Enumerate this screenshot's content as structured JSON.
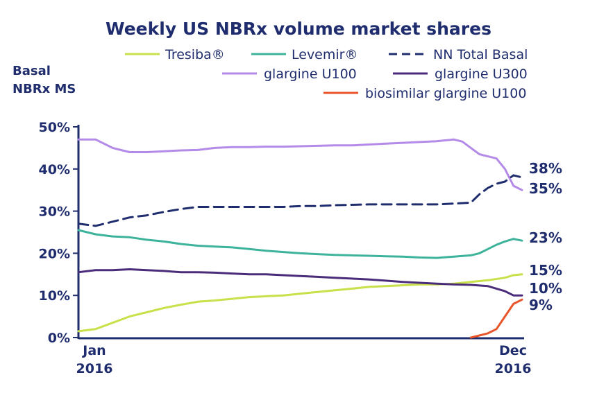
{
  "chart_data": {
    "type": "line",
    "title": "Weekly US NBRx volume market shares",
    "ylabel_line1": "Basal",
    "ylabel_line2": "NBRx MS",
    "ylim": [
      0,
      50
    ],
    "yticks": [
      "0%",
      "10%",
      "20%",
      "30%",
      "40%",
      "50%"
    ],
    "xtick_start": [
      "Jan",
      "2016"
    ],
    "xtick_end": [
      "Dec",
      "2016"
    ],
    "grid": false,
    "legend_position": "top-right",
    "series": [
      {
        "name": "Tresiba",
        "legend_label": "Tresiba®",
        "color": "#c9e04a",
        "dash": "solid",
        "end_label": "15%",
        "x": [
          0,
          2,
          4,
          6,
          8,
          10,
          12,
          14,
          16,
          18,
          20,
          22,
          24,
          26,
          28,
          30,
          32,
          34,
          36,
          38,
          40,
          42,
          44,
          46,
          48,
          50,
          51,
          52
        ],
        "values": [
          1.5,
          2,
          3.5,
          5,
          6,
          7,
          7.8,
          8.5,
          8.8,
          9.2,
          9.6,
          9.8,
          10,
          10.4,
          10.8,
          11.2,
          11.6,
          12,
          12.2,
          12.4,
          12.6,
          12.6,
          12.8,
          13.2,
          13.6,
          14.2,
          14.8,
          15
        ]
      },
      {
        "name": "Levemir",
        "legend_label": "Levemir®",
        "color": "#3cb39a",
        "dash": "solid",
        "end_label": "23%",
        "x": [
          0,
          2,
          4,
          6,
          8,
          10,
          12,
          14,
          16,
          18,
          20,
          22,
          24,
          26,
          28,
          30,
          32,
          34,
          36,
          38,
          40,
          42,
          44,
          46,
          47,
          48,
          49,
          50,
          51,
          52
        ],
        "values": [
          25.5,
          24.5,
          24,
          23.8,
          23.2,
          22.8,
          22.2,
          21.8,
          21.6,
          21.4,
          21,
          20.6,
          20.3,
          20,
          19.8,
          19.6,
          19.5,
          19.4,
          19.3,
          19.2,
          19,
          18.9,
          19.2,
          19.5,
          20,
          21,
          22,
          22.8,
          23.4,
          23
        ]
      },
      {
        "name": "NN Total Basal",
        "legend_label": "NN Total Basal",
        "color": "#1f2d6e",
        "dash": "dashed",
        "end_label": "38%",
        "x": [
          0,
          2,
          4,
          6,
          8,
          10,
          12,
          14,
          16,
          18,
          20,
          22,
          24,
          26,
          28,
          30,
          32,
          34,
          36,
          38,
          40,
          42,
          44,
          46,
          47,
          48,
          49,
          50,
          51,
          52
        ],
        "values": [
          27,
          26.5,
          27.5,
          28.5,
          29,
          29.8,
          30.5,
          31,
          31,
          31,
          31,
          31,
          31,
          31.2,
          31.2,
          31.4,
          31.5,
          31.6,
          31.6,
          31.6,
          31.6,
          31.6,
          31.8,
          32,
          34,
          35.5,
          36.5,
          37,
          38.5,
          38
        ]
      },
      {
        "name": "glargine U100",
        "legend_label": "glargine U100",
        "color": "#b48ae8",
        "dash": "solid",
        "end_label": "35%",
        "x": [
          0,
          2,
          4,
          6,
          8,
          10,
          12,
          14,
          16,
          18,
          20,
          22,
          24,
          26,
          28,
          30,
          32,
          34,
          36,
          38,
          40,
          42,
          44,
          45,
          46,
          47,
          48,
          49,
          50,
          51,
          52
        ],
        "values": [
          47,
          47,
          45,
          44,
          44,
          44.2,
          44.4,
          44.5,
          45,
          45.2,
          45.2,
          45.3,
          45.3,
          45.4,
          45.5,
          45.6,
          45.6,
          45.8,
          46,
          46.2,
          46.4,
          46.6,
          47,
          46.5,
          45,
          43.5,
          43,
          42.5,
          40,
          36,
          35
        ]
      },
      {
        "name": "glargine U300",
        "legend_label": "glargine U300",
        "color": "#4a2c7a",
        "dash": "solid",
        "end_label": "10%",
        "x": [
          0,
          2,
          4,
          6,
          8,
          10,
          12,
          14,
          16,
          18,
          20,
          22,
          24,
          26,
          28,
          30,
          32,
          34,
          36,
          38,
          40,
          42,
          44,
          46,
          48,
          50,
          51,
          52
        ],
        "values": [
          15.5,
          16,
          16,
          16.2,
          16,
          15.8,
          15.5,
          15.5,
          15.4,
          15.2,
          15,
          15,
          14.8,
          14.6,
          14.4,
          14.2,
          14,
          13.8,
          13.5,
          13.2,
          13,
          12.8,
          12.6,
          12.5,
          12.2,
          11,
          10,
          10
        ]
      },
      {
        "name": "biosimilar glargine U100",
        "legend_label": "biosimilar glargine U100",
        "color": "#e8552b",
        "dash": "solid",
        "end_label": "9%",
        "x": [
          46,
          47,
          48,
          49,
          50,
          51,
          52
        ],
        "values": [
          0,
          0.5,
          1,
          2,
          5,
          8,
          9
        ]
      }
    ]
  }
}
